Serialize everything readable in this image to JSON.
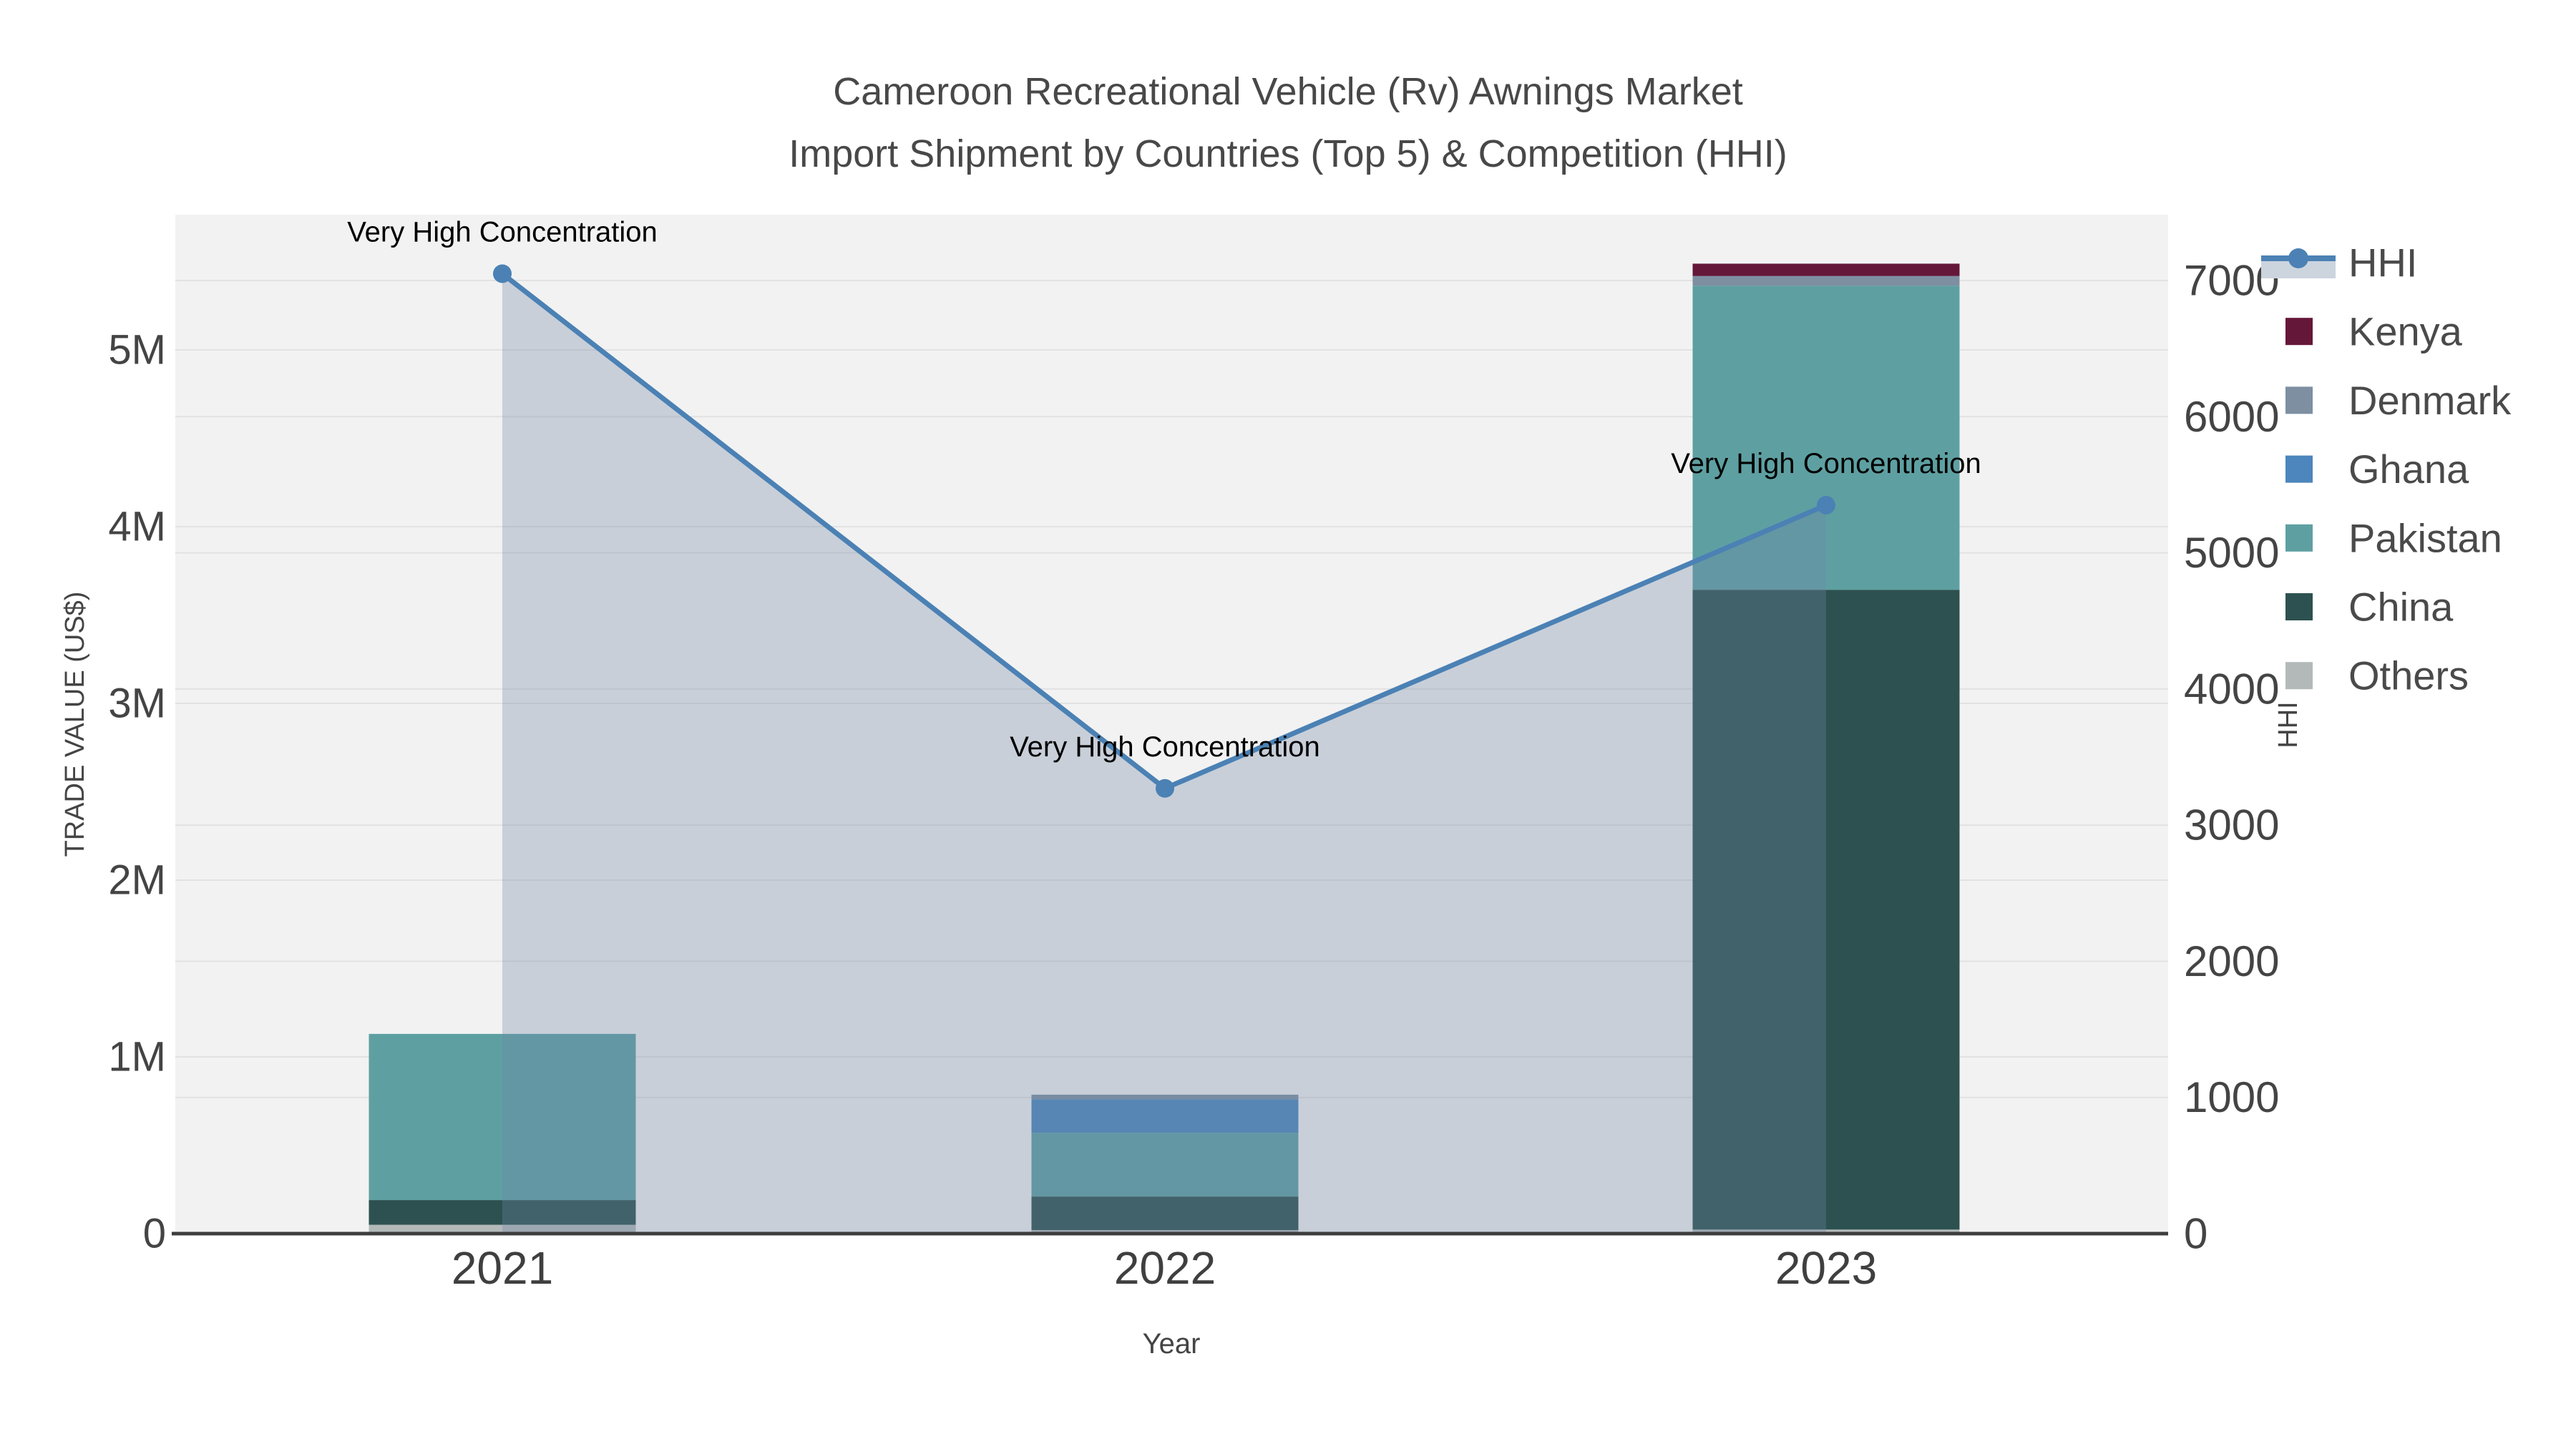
{
  "title": {
    "line1": "Cameroon Recreational Vehicle (Rv) Awnings Market",
    "line2": "Import Shipment by Countries (Top 5) & Competition (HHI)"
  },
  "axes": {
    "x": {
      "title": "Year",
      "categories": [
        "2021",
        "2022",
        "2023"
      ]
    },
    "y_left": {
      "title": "TRADE VALUE (US$)",
      "tick_labels": [
        "0",
        "1M",
        "2M",
        "3M",
        "4M",
        "5M"
      ],
      "tick_values": [
        0,
        1000000,
        2000000,
        3000000,
        4000000,
        5000000
      ],
      "range": [
        0,
        5760000
      ]
    },
    "y_right": {
      "title": "HHI",
      "tick_labels": [
        "0",
        "1000",
        "2000",
        "3000",
        "4000",
        "5000",
        "6000",
        "7000"
      ],
      "tick_values": [
        0,
        1000,
        2000,
        3000,
        4000,
        5000,
        6000,
        7000
      ],
      "range": [
        0,
        7480
      ]
    }
  },
  "legend": {
    "items": [
      {
        "label": "HHI",
        "type": "line",
        "color": "#4b81b4",
        "area_color": "#ccd4de"
      },
      {
        "label": "Kenya",
        "type": "square",
        "color": "#65173a"
      },
      {
        "label": "Denmark",
        "type": "square",
        "color": "#7d8fa1"
      },
      {
        "label": "Ghana",
        "type": "square",
        "color": "#4c86bc"
      },
      {
        "label": "Pakistan",
        "type": "square",
        "color": "#5ea0a2"
      },
      {
        "label": "China",
        "type": "square",
        "color": "#2d5150"
      },
      {
        "label": "Others",
        "type": "square",
        "color": "#b3b9b9"
      }
    ]
  },
  "chart_data": {
    "type": "bar+line",
    "title": "Cameroon Recreational Vehicle (Rv) Awnings Market Import Shipment by Countries (Top 5) & Competition (HHI)",
    "categories": [
      "2021",
      "2022",
      "2023"
    ],
    "bar_value_unit": "US$ trade value",
    "bar_stack_bottom_to_top": [
      "Others",
      "China",
      "Pakistan",
      "Ghana",
      "Denmark",
      "Kenya"
    ],
    "series": [
      {
        "name": "Others",
        "color": "#b3b9b9",
        "values": [
          50000,
          20000,
          23000
        ]
      },
      {
        "name": "China",
        "color": "#2d5150",
        "values": [
          140000,
          190000,
          3620000
        ]
      },
      {
        "name": "Pakistan",
        "color": "#5ea0a2",
        "values": [
          940000,
          360000,
          1720000
        ]
      },
      {
        "name": "Ghana",
        "color": "#4c86bc",
        "values": [
          0,
          190000,
          0
        ]
      },
      {
        "name": "Denmark",
        "color": "#7d8fa1",
        "values": [
          0,
          26000,
          55000
        ]
      },
      {
        "name": "Kenya",
        "color": "#65173a",
        "values": [
          0,
          0,
          70000
        ]
      }
    ],
    "bar_totals": [
      1130000,
      786000,
      5488000
    ],
    "line_series": {
      "name": "HHI",
      "axis": "right",
      "color": "#4b81b4",
      "area_fill": "rgba(111,133,164,0.32)",
      "values": [
        7050,
        3270,
        5350
      ]
    },
    "annotations": [
      {
        "text": "Very High Concentration",
        "category": "2021"
      },
      {
        "text": "Very High Concentration",
        "category": "2022"
      },
      {
        "text": "Very High Concentration",
        "category": "2023"
      }
    ],
    "legend_position": "right",
    "grid": true
  },
  "colors": {
    "plot_bg": "#f2f2f2",
    "grid": "#e2e2e2",
    "axis_line": "#3d3d3d",
    "tick_text": "#444444",
    "title_text": "#484848",
    "legend_text": "#4a4a4a",
    "annotation_text": "#000000"
  }
}
